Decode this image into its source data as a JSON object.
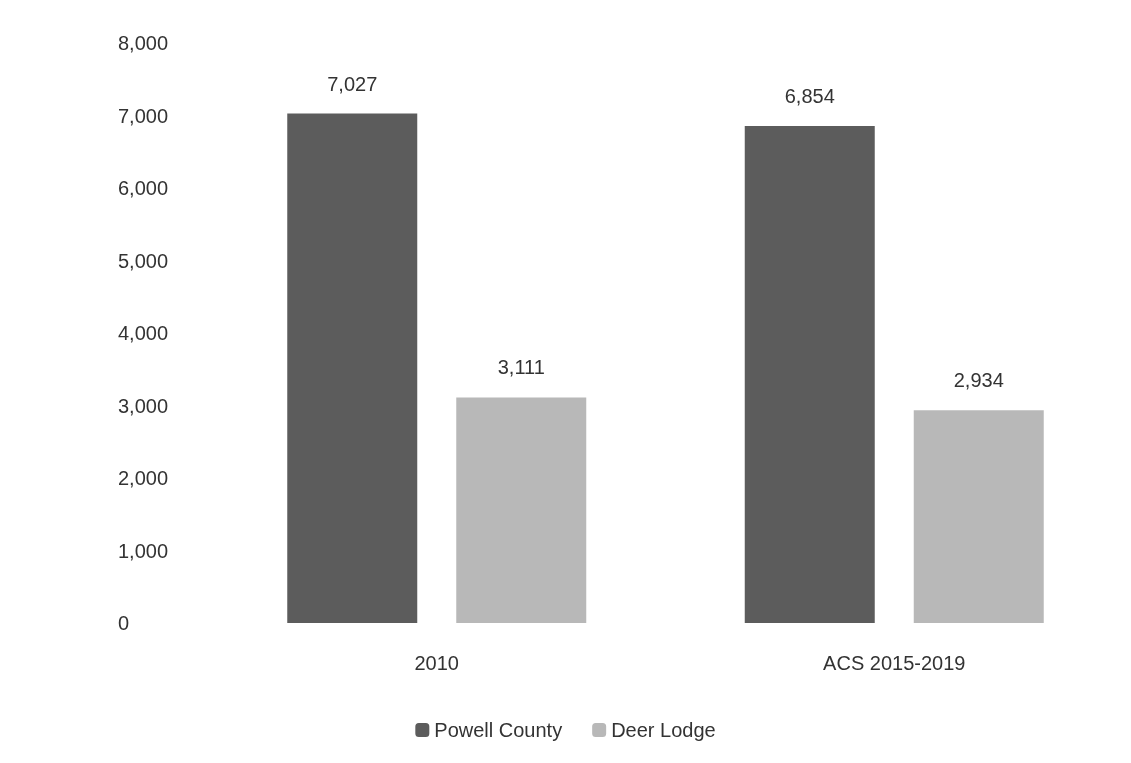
{
  "chart_data": {
    "type": "bar",
    "categories": [
      "2010",
      "ACS 2015-2019"
    ],
    "series": [
      {
        "name": "Powell County",
        "color": "#5c5c5c",
        "values": [
          7027,
          6854
        ],
        "value_labels": [
          "7,027",
          "6,854"
        ]
      },
      {
        "name": "Deer Lodge",
        "color": "#b8b8b8",
        "values": [
          3111,
          2934
        ],
        "value_labels": [
          "3,111",
          "2,934"
        ]
      }
    ],
    "ylim": [
      0,
      8000
    ],
    "yticks": [
      {
        "value": 0,
        "label": "0"
      },
      {
        "value": 1000,
        "label": "1,000"
      },
      {
        "value": 2000,
        "label": "2,000"
      },
      {
        "value": 3000,
        "label": "3,000"
      },
      {
        "value": 4000,
        "label": "4,000"
      },
      {
        "value": 5000,
        "label": "5,000"
      },
      {
        "value": 6000,
        "label": "6,000"
      },
      {
        "value": 7000,
        "label": "7,000"
      },
      {
        "value": 8000,
        "label": "8,000"
      }
    ],
    "grid": false,
    "legend": "bottom"
  }
}
